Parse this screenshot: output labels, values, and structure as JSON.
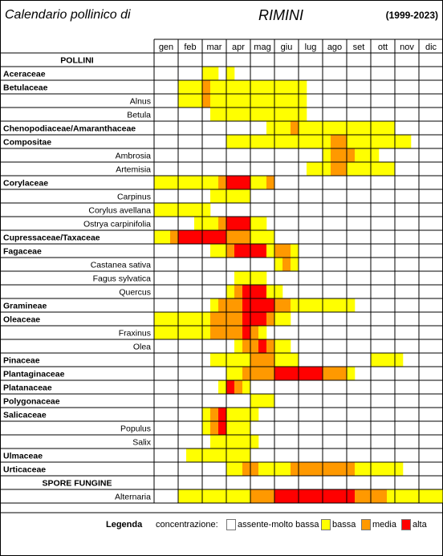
{
  "header": {
    "title": "Calendario pollinico di",
    "city": "RIMINI",
    "years": "(1999-2023)"
  },
  "colors": {
    "0": "#ffffff",
    "1": "#ffff00",
    "2": "#ff9900",
    "3": "#ff0000",
    "grid": "#000000",
    "subgrid": "#c8c8c8"
  },
  "legend": {
    "title": "Legenda",
    "label": "concentrazione:",
    "items": [
      {
        "text": "assente-molto bassa",
        "level": 0
      },
      {
        "text": "bassa",
        "level": 1
      },
      {
        "text": "media",
        "level": 2
      },
      {
        "text": "alta",
        "level": 3
      }
    ]
  },
  "chart_data": {
    "type": "heatmap",
    "months": [
      "gen",
      "feb",
      "mar",
      "apr",
      "mag",
      "giu",
      "lug",
      "ago",
      "set",
      "ott",
      "nov",
      "dic"
    ],
    "slots_per_month": 3,
    "levels": {
      "0": "assente-molto bassa",
      "1": "bassa",
      "2": "media",
      "3": "alta"
    },
    "rows": [
      {
        "label": "POLLINI",
        "kind": "section",
        "cells": null
      },
      {
        "label": "Aceraceae",
        "kind": "family",
        "cells": "000000110100000000000000000000000000"
      },
      {
        "label": "Betulaceae",
        "kind": "family",
        "cells": "000111211111111111100000000000000000"
      },
      {
        "label": "Alnus",
        "kind": "species",
        "cells": "000111211111111111100000000000000000"
      },
      {
        "label": "Betula",
        "kind": "species",
        "cells": "000000011111111111100000000000000000"
      },
      {
        "label": "Chenopodiaceae/Amaranthaceae",
        "kind": "family",
        "cells": "000000000000001112111111111111000000"
      },
      {
        "label": "Compositae",
        "kind": "family",
        "cells": "000000000111111111111122111111110000"
      },
      {
        "label": "Ambrosia",
        "kind": "species",
        "cells": "000000000000000000000122211100000000"
      },
      {
        "label": "Artemisia",
        "kind": "species",
        "cells": "000000000000000000011122111111000000"
      },
      {
        "label": "Corylaceae",
        "kind": "family",
        "cells": "111111112333112000000000000000000000"
      },
      {
        "label": "Carpinus",
        "kind": "species",
        "cells": "000000011111000000000000000000000000"
      },
      {
        "label": "Corylus avellana",
        "kind": "species",
        "cells": "111111100000000000000000000000000000"
      },
      {
        "label": "Ostrya carpinifolia",
        "kind": "species",
        "cells": "000001112333110000000000000000000000"
      },
      {
        "label": "Cupressaceae/Taxaceae",
        "kind": "family",
        "cells": "112333333222111000000000000000000000"
      },
      {
        "label": "Fagaceae",
        "kind": "family",
        "cells": "000000011233331221000000000000000000"
      },
      {
        "label": "Castanea sativa",
        "kind": "species",
        "cells": "000000000000000121000000000000000000"
      },
      {
        "label": "Fagus sylvatica",
        "kind": "species",
        "cells": "000000000011110000000000000000000000"
      },
      {
        "label": "Quercus",
        "kind": "species",
        "cells": "000000000123331100000000000000000000"
      },
      {
        "label": "Gramineae",
        "kind": "family",
        "cells": "000000012223333221111111100000000000"
      },
      {
        "label": "Oleaceae",
        "kind": "family",
        "cells": "111111122223332110000000000000000000"
      },
      {
        "label": "Fraxinus",
        "kind": "species",
        "cells": "111111122223210000000000000000000000"
      },
      {
        "label": "Olea",
        "kind": "species",
        "cells": "000000000012232110000000000000000000"
      },
      {
        "label": "Pinaceae",
        "kind": "family",
        "cells": "000000011111222111000000000111100000"
      },
      {
        "label": "Plantaginaceae",
        "kind": "family",
        "cells": "000000000112222333333222100000000000"
      },
      {
        "label": "Platanaceae",
        "kind": "family",
        "cells": "000000001321000000000000000000000000"
      },
      {
        "label": "Polygonaceae",
        "kind": "family",
        "cells": "000000000000111000000000000000000000"
      },
      {
        "label": "Salicaceae",
        "kind": "family",
        "cells": "000000123111100000000000000000000000"
      },
      {
        "label": "Populus",
        "kind": "species",
        "cells": "000000123111000000000000000000000000"
      },
      {
        "label": "Salix",
        "kind": "species",
        "cells": "000000011111100000000000000000000000"
      },
      {
        "label": "Ulmaceae",
        "kind": "family",
        "cells": "000011111111000000000000000000000000"
      },
      {
        "label": "Urticaceae",
        "kind": "family",
        "cells": "000000000112211112222222211111100000"
      },
      {
        "label": "SPORE FUNGINE",
        "kind": "section",
        "cells": null
      },
      {
        "label": "Alternaria",
        "kind": "species",
        "cells": "000111111111222333333333322221111111"
      }
    ]
  }
}
